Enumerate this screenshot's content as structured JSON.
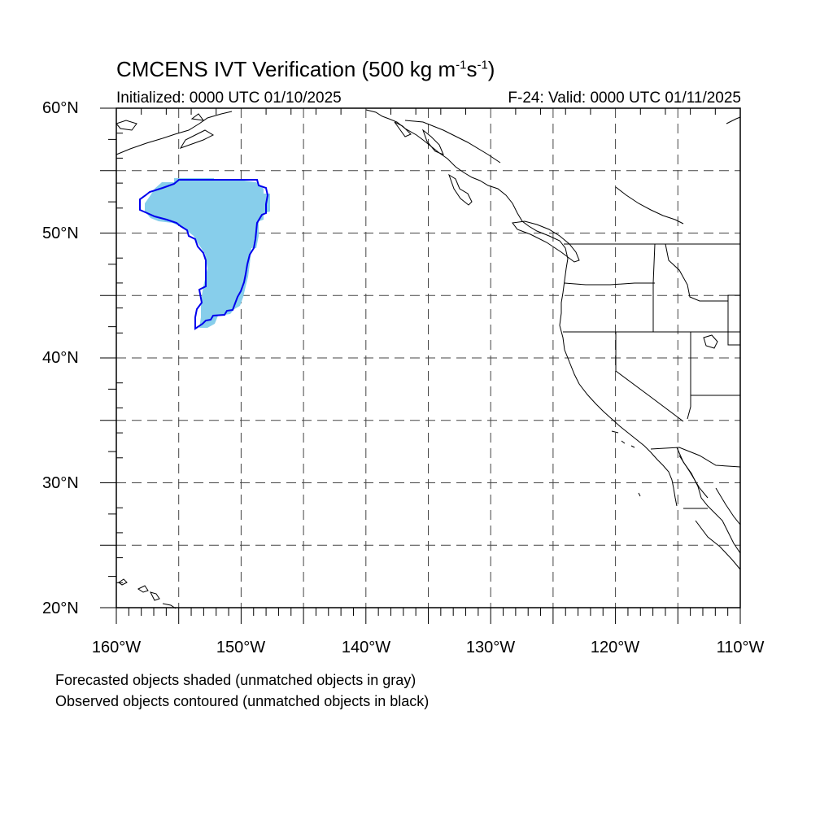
{
  "title": {
    "main": "CMCENS IVT Verification (500 kg m",
    "sup1": "-1",
    "mid": "s",
    "sup2": "-1",
    "end": ")"
  },
  "initialized": "Initialized: 0000 UTC 01/10/2025",
  "valid": "F-24: Valid: 0000 UTC 01/11/2025",
  "axes": {
    "lat_labels": [
      "60°N",
      "50°N",
      "40°N",
      "30°N",
      "20°N"
    ],
    "lon_labels": [
      "160°W",
      "150°W",
      "140°W",
      "130°W",
      "120°W",
      "110°W"
    ],
    "lon_range": [
      -160,
      -110
    ],
    "lat_range": [
      20,
      60
    ],
    "grid_lon": [
      -155,
      -150,
      -145,
      -140,
      -135,
      -130,
      -125,
      -120,
      -115
    ],
    "grid_lat": [
      25,
      30,
      35,
      40,
      45,
      50,
      55
    ]
  },
  "captions": {
    "forecast": "Forecasted objects shaded (unmatched objects in gray)",
    "observed": "Observed objects contoured (unmatched objects in black)"
  },
  "colors": {
    "forecast_fill": "#87ceeb",
    "observed_contour": "#0000ee"
  }
}
